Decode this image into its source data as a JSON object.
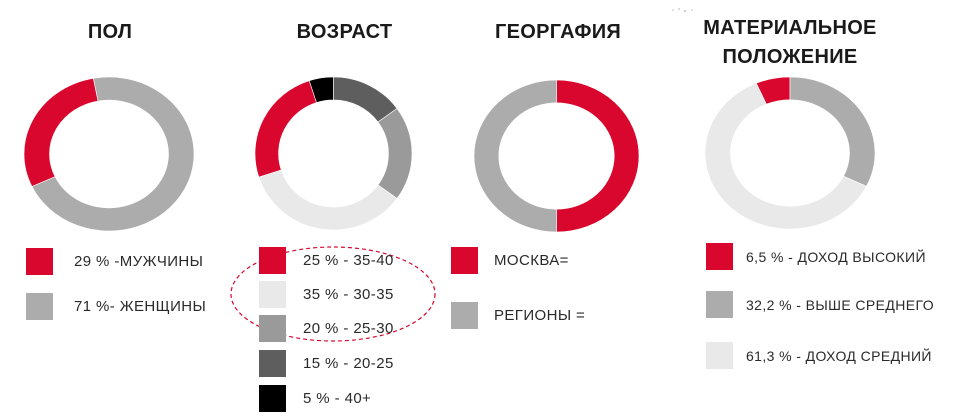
{
  "colors": {
    "red": "#d9062d",
    "gray": "#acacac",
    "light": "#e9e9e9",
    "mid": "#9a9a9a",
    "dark": "#5e5e5e",
    "black": "#000000"
  },
  "chart_data": [
    {
      "type": "pie",
      "style": "donut",
      "title": "ПОЛ",
      "slices": [
        {
          "label": "29 % -МУЖЧИНЫ",
          "value": 29,
          "color": "#d9062d"
        },
        {
          "label": "71 %- ЖЕНЩИНЫ",
          "value": 71,
          "color": "#acacac"
        }
      ],
      "start_angle_deg": 245
    },
    {
      "type": "pie",
      "style": "donut",
      "title": "ВОЗРАСТ",
      "slices": [
        {
          "label": "25 % - 35-40",
          "value": 25,
          "color": "#d9062d"
        },
        {
          "label": "35 % - 30-35",
          "value": 35,
          "color": "#e9e9e9"
        },
        {
          "label": "20 % - 25-30",
          "value": 20,
          "color": "#9a9a9a"
        },
        {
          "label": "15 % - 20-25",
          "value": 15,
          "color": "#5e5e5e"
        },
        {
          "label": "5 % -  40+",
          "value": 5,
          "color": "#000000"
        }
      ],
      "draw_order": [
        0,
        4,
        3,
        2,
        1
      ],
      "start_angle_deg": 252
    },
    {
      "type": "pie",
      "style": "donut",
      "title": "ГЕОРГАФИЯ",
      "slices": [
        {
          "label": "МОСКВА=",
          "value": 50,
          "color": "#d9062d"
        },
        {
          "label": "РЕГИОНЫ =",
          "value": 50,
          "color": "#acacac"
        }
      ],
      "start_angle_deg": 0
    },
    {
      "type": "pie",
      "style": "donut",
      "title": "МАТЕРИАЛЬНОЕ ПОЛОЖЕНИЕ",
      "slices": [
        {
          "label": "6,5 % - ДОХОД ВЫСОКИЙ",
          "value": 6.5,
          "color": "#d9062d"
        },
        {
          "label": "32,2 % - ВЫШЕ СРЕДНЕГО",
          "value": 32.2,
          "color": "#acacac"
        },
        {
          "label": "61,3 % - ДОХОД СРЕДНИЙ",
          "value": 61.3,
          "color": "#e9e9e9"
        }
      ],
      "start_angle_deg": 336.6
    }
  ]
}
